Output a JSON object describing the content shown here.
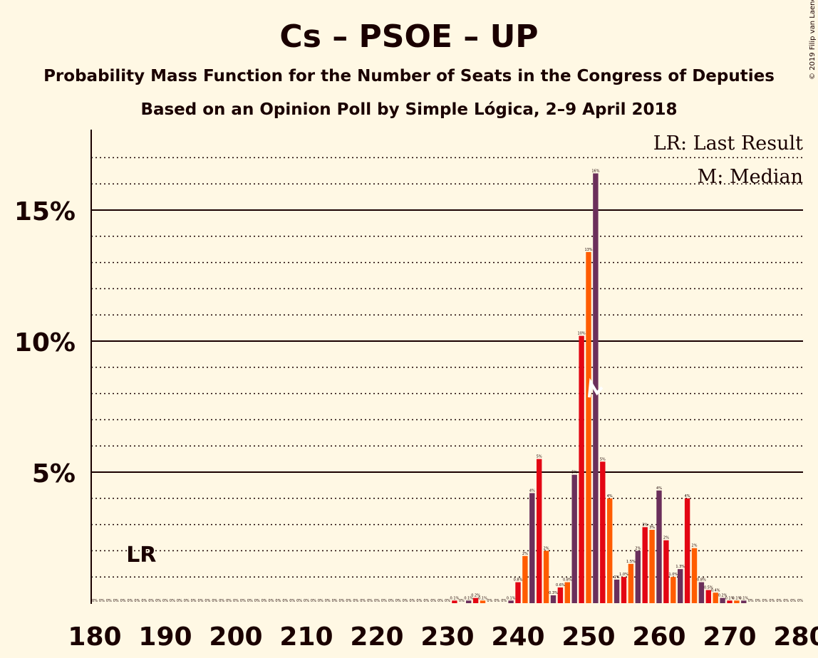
{
  "chart_data": {
    "type": "bar",
    "title": "Cs – PSOE – UP",
    "subtitle": "Probability Mass Function for the Number of Seats in the Congress of Deputies",
    "subtitle2": "Based on an Opinion Poll by Simple Lógica, 2–9 April 2018",
    "copyright": "© 2019 Filip van Laenen",
    "legend": {
      "lr": "LR: Last Result",
      "median": "M: Median",
      "placement": "top-right"
    },
    "lr_label": "LR",
    "last_result": 187,
    "median": 251,
    "xlim": [
      180,
      280
    ],
    "ylim": [
      0,
      18
    ],
    "x_ticks": [
      "180",
      "190",
      "200",
      "210",
      "220",
      "230",
      "240",
      "250",
      "260",
      "270",
      "280"
    ],
    "y_ticks": [
      "5%",
      "10%",
      "15%"
    ],
    "grid": true,
    "colors": {
      "red": "#E30613",
      "orange": "#FF5C00",
      "purple": "#6B2F5B",
      "median_marker": "#FFFFFF",
      "background": "#FFF8E4"
    },
    "series": [
      {
        "seats": [
          180,
          181,
          182,
          183,
          184,
          185,
          186,
          187,
          188,
          189,
          190,
          191,
          192,
          193,
          194,
          195,
          196,
          197,
          198,
          199,
          200,
          201,
          202,
          203,
          204,
          205,
          206,
          207,
          208,
          209,
          210,
          211,
          212,
          213,
          214,
          215,
          216,
          217,
          218,
          219,
          220,
          221,
          222,
          223,
          224,
          225,
          226,
          227,
          228,
          229,
          230,
          231,
          232,
          233,
          234,
          235,
          236,
          237,
          238,
          239,
          240,
          241,
          242,
          243,
          244,
          245,
          246,
          247,
          248,
          249,
          250,
          251,
          252,
          253,
          254,
          255,
          256,
          257,
          258,
          259,
          260,
          261,
          262,
          263,
          264,
          265,
          266,
          267,
          268,
          269,
          270,
          271,
          272,
          273,
          274,
          275,
          276,
          277,
          278,
          279,
          280
        ],
        "values": [
          0,
          0,
          0,
          0,
          0,
          0,
          0,
          0,
          0,
          0,
          0,
          0,
          0,
          0,
          0,
          0,
          0,
          0,
          0,
          0,
          0,
          0,
          0,
          0,
          0,
          0,
          0,
          0,
          0,
          0,
          0,
          0,
          0,
          0,
          0,
          0,
          0,
          0,
          0,
          0,
          0,
          0,
          0,
          0,
          0,
          0,
          0,
          0,
          0,
          0,
          0,
          0.1,
          0,
          0.1,
          0.2,
          0.1,
          0,
          0,
          0,
          0.1,
          0.8,
          1.8,
          4.2,
          5.5,
          2.0,
          0.3,
          0.6,
          0.8,
          4.9,
          10.2,
          13.4,
          16.4,
          5.4,
          4.0,
          0.9,
          1.0,
          1.5,
          2.0,
          2.9,
          2.8,
          4.3,
          2.4,
          1.0,
          1.3,
          4.0,
          2.1,
          0.8,
          0.5,
          0.4,
          0.2,
          0.1,
          0.1,
          0.1,
          0,
          0,
          0,
          0,
          0,
          0,
          0,
          0
        ],
        "labels": [
          "0%",
          "0%",
          "0%",
          "0%",
          "0%",
          "0%",
          "0%",
          "0%",
          "0%",
          "0%",
          "0%",
          "0%",
          "0%",
          "0%",
          "0%",
          "0%",
          "0%",
          "0%",
          "0%",
          "0%",
          "0%",
          "0%",
          "0%",
          "0%",
          "0%",
          "0%",
          "0%",
          "0%",
          "0%",
          "0%",
          "0%",
          "0%",
          "0%",
          "0%",
          "0%",
          "0%",
          "0%",
          "0%",
          "0%",
          "0%",
          "0%",
          "0%",
          "0%",
          "0%",
          "0%",
          "0%",
          "0%",
          "0%",
          "0%",
          "0%",
          "0%",
          "0.1%",
          "0%",
          "0.1%",
          "0.2%",
          "0.1%",
          "0%",
          "0%",
          "0%",
          "0.1%",
          "0.8%",
          "2%",
          "4%",
          "5%",
          "2%",
          "0.3%",
          "0.6%",
          "0.8%",
          "5%",
          "10%",
          "13%",
          "16%",
          "5%",
          "4%",
          "1%",
          "1.0%",
          "1.5%",
          "2%",
          "3%",
          "3%",
          "4%",
          "2%",
          "1.0%",
          "1.3%",
          "4%",
          "2%",
          "0.8%",
          "0.5%",
          "0.4%",
          "0.2%",
          "0.1%",
          "0.1%",
          "0.1%",
          "0%",
          "0%",
          "0%",
          "0%",
          "0%",
          "0%",
          "0%",
          "0%"
        ]
      }
    ]
  }
}
